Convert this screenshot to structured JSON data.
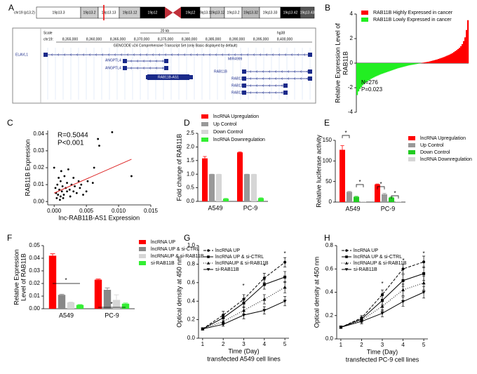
{
  "panel_labels": [
    "A",
    "B",
    "C",
    "D",
    "E",
    "F",
    "G",
    "H"
  ],
  "genome_browser": {
    "chromosome": "chr19 (p13.2)",
    "bands": [
      "19p13.3",
      "19p13.2",
      "19p13.13",
      "19p13.12",
      "19p12",
      "19q12",
      "19q13.11",
      "19q13.12",
      "19q13.2",
      "19q13.32",
      "19q13.33",
      "19q13.42",
      "19q13.43"
    ],
    "scale_label": "Scale",
    "scale_size": "20 kb",
    "assembly": "hg38",
    "chrom": "chr19:",
    "positions": [
      "8,355,000",
      "8,360,000",
      "8,365,000",
      "8,370,000",
      "8,375,000",
      "8,380,000",
      "8,385,000",
      "8,390,000",
      "8,395,000",
      "8,400,000"
    ],
    "track": "GENCODE v24 Comprehensive Transcript Set (only Basic displayed by default)",
    "genes": [
      "ELAVL1",
      "ANGPTL4",
      "ANGPTL4",
      "RAB11B-AS1",
      "MIR4999",
      "RAB11B",
      "RAB11B",
      "RAB11B",
      "RAB11B"
    ]
  },
  "chart_data": [
    {
      "type": "bar",
      "ylabel": [
        "Relative Expression Level of",
        "RAB11B"
      ],
      "ylim": [
        -4,
        4
      ],
      "yticks": [
        -4,
        -2,
        0,
        2,
        4
      ],
      "annotations": [
        "N=276",
        "P=0.023"
      ],
      "series": [
        {
          "name": "RAB11B Highly Expressed in cancer",
          "color": "#ff0000",
          "values": [
            0.02,
            0.04,
            0.06,
            0.08,
            0.1,
            0.12,
            0.15,
            0.18,
            0.21,
            0.24,
            0.27,
            0.3,
            0.34,
            0.38,
            0.42,
            0.46,
            0.5,
            0.55,
            0.6,
            0.65,
            0.7,
            0.76,
            0.82,
            0.9,
            0.98,
            1.06,
            1.15,
            1.25,
            1.38,
            1.55,
            1.8,
            2.1,
            2.7,
            3.5
          ]
        },
        {
          "name": "RAB11B Lowly Expressed in cancer",
          "color": "#22ee22",
          "values": [
            -2.6,
            -2.3,
            -2.1,
            -1.95,
            -1.8,
            -1.7,
            -1.6,
            -1.5,
            -1.42,
            -1.35,
            -1.28,
            -1.22,
            -1.16,
            -1.1,
            -1.05,
            -1.0,
            -0.95,
            -0.9,
            -0.86,
            -0.82,
            -0.78,
            -0.74,
            -0.7,
            -0.66,
            -0.62,
            -0.58,
            -0.54,
            -0.5,
            -0.46,
            -0.42,
            -0.39,
            -0.36,
            -0.33,
            -0.3,
            -0.27,
            -0.24,
            -0.21,
            -0.18,
            -0.16,
            -0.14,
            -0.12,
            -0.1,
            -0.08,
            -0.06,
            -0.04,
            -0.02
          ]
        }
      ]
    },
    {
      "type": "scatter",
      "xlabel": "lnc-RAB11B-AS1 Expression",
      "ylabel": [
        "RAB11B Expression"
      ],
      "color": "#000000",
      "xlim": [
        -0.001,
        0.015
      ],
      "xticks": [
        {
          "value": 0,
          "label": "0.000"
        },
        {
          "value": 0.005,
          "label": "0.005"
        },
        {
          "value": 0.01,
          "label": "0.010"
        },
        {
          "value": 0.015,
          "label": "0.015"
        }
      ],
      "ylim": [
        -0.002,
        0.042
      ],
      "yticks": [
        {
          "value": 0,
          "label": "0.00"
        },
        {
          "value": 0.01,
          "label": "0.01"
        },
        {
          "value": 0.02,
          "label": "0.02"
        },
        {
          "value": 0.03,
          "label": "0.03"
        },
        {
          "value": 0.04,
          "label": "0.04"
        }
      ],
      "annotations": [
        "R=0.5044",
        "P<0.001"
      ],
      "x": [
        0,
        0.0002,
        0.0003,
        0.0005,
        0.0006,
        0.0008,
        0.001,
        0.001,
        0.0012,
        0.0013,
        0.0015,
        0.0016,
        0.0018,
        0.002,
        0.002,
        0.0022,
        0.0024,
        0.0025,
        0.0027,
        0.003,
        0.003,
        0.0032,
        0.0035,
        0.0038,
        0.004,
        0.0042,
        0.0045,
        0.005,
        0.0052,
        0.006,
        0.0062,
        0.0068,
        0.007,
        0.009,
        0.012,
        0.0004,
        0.0007,
        0.0011,
        0.0009,
        0.0014
      ],
      "values": [
        0.02,
        0.008,
        0.005,
        0.01,
        0.004,
        0.007,
        0.003,
        0.012,
        0.006,
        0.009,
        0.004,
        0.015,
        0.008,
        0.006,
        0.011,
        0.019,
        0.007,
        0.003,
        0.01,
        0.006,
        0.014,
        0.009,
        0.005,
        0.012,
        0.008,
        0.01,
        0.004,
        0.006,
        0.012,
        0.011,
        0.02,
        0.037,
        0.033,
        0.041,
        0.015,
        0.002,
        0.014,
        0.018,
        0.001,
        0.002
      ],
      "fit": {
        "color": "#dd2222",
        "x": [
          0,
          0.012
        ],
        "values": [
          0.005,
          0.025
        ]
      }
    },
    {
      "type": "bar",
      "ylabel": [
        "Fold change of RAB11B"
      ],
      "categories": [
        "A549",
        "PC-9"
      ],
      "ylim": [
        0,
        2.5
      ],
      "yticks": [
        {
          "value": 0,
          "label": "0.0"
        },
        {
          "value": 0.5,
          "label": "0.5"
        },
        {
          "value": 1,
          "label": "1.0"
        },
        {
          "value": 1.5,
          "label": "1.5"
        },
        {
          "value": 2,
          "label": "2.0"
        },
        {
          "value": 2.5,
          "label": "2.5"
        }
      ],
      "series": [
        {
          "name": "lncRNA Upregulation",
          "color": "#ff0000",
          "values": [
            1.58,
            1.8
          ],
          "errors": [
            0.07,
            0.02
          ]
        },
        {
          "name": "Up Control",
          "color": "#999999",
          "values": [
            1,
            1
          ],
          "errors": [
            0,
            0
          ]
        },
        {
          "name": "Down Control",
          "color": "#d6d6d6",
          "values": [
            1,
            1
          ],
          "errors": [
            0,
            0
          ]
        },
        {
          "name": "lncRNA Downregulation",
          "color": "#33ee33",
          "values": [
            0.1,
            0.12
          ],
          "errors": [
            0.01,
            0.01
          ]
        }
      ]
    },
    {
      "type": "bar",
      "ylabel": [
        "Relative luciferase activity"
      ],
      "categories": [
        "A549",
        "PC-9"
      ],
      "ylim": [
        0,
        150
      ],
      "yticks": [
        0,
        50,
        100,
        150
      ],
      "annotations": [
        "*",
        "*",
        "*",
        "*"
      ],
      "series": [
        {
          "name": "lncRNA Upregulation",
          "color": "#ff0000",
          "values": [
            127,
            43
          ],
          "errors": [
            10,
            1
          ]
        },
        {
          "name": "Up Control",
          "color": "#999999",
          "values": [
            25,
            19
          ],
          "errors": [
            1,
            2
          ]
        },
        {
          "name": "Down Control",
          "color": "#22cc22",
          "values": [
            13,
            11
          ],
          "errors": [
            1,
            1
          ]
        },
        {
          "name": "lncRNA Downregulation",
          "color": "#d6d6d6",
          "values": [
            1,
            1
          ],
          "errors": [
            0,
            0
          ]
        }
      ]
    },
    {
      "type": "bar",
      "ylabel": [
        "Relative Expression",
        "Level of RAB11B"
      ],
      "categories": [
        "A549",
        "PC-9"
      ],
      "ylim": [
        0,
        0.05
      ],
      "yticks": [
        {
          "value": 0,
          "label": "0.00"
        },
        {
          "value": 0.01,
          "label": "0.01"
        },
        {
          "value": 0.02,
          "label": "0.02"
        },
        {
          "value": 0.03,
          "label": "0.03"
        },
        {
          "value": 0.04,
          "label": "0.04"
        },
        {
          "value": 0.05,
          "label": "0.05"
        }
      ],
      "annotations": [
        "*",
        "*"
      ],
      "series": [
        {
          "name": "lncRNA UP",
          "color": "#ff0000",
          "values": [
            0.042,
            0.023
          ],
          "errors": [
            0.0015,
            0.0005
          ]
        },
        {
          "name": "lncRNA UP & si-CTRL",
          "color": "#888888",
          "values": [
            0.011,
            0.015
          ],
          "errors": [
            0.0005,
            0.0015
          ]
        },
        {
          "name": "lncRNAUP & si-RAB11B",
          "color": "#d6d6d6",
          "values": [
            0.005,
            0.007
          ],
          "errors": [
            0.0003,
            0.004
          ]
        },
        {
          "name": "si-RAB11B",
          "color": "#33ee33",
          "values": [
            0.003,
            0.004
          ],
          "errors": [
            0.0003,
            0.0005
          ]
        }
      ]
    },
    {
      "type": "line",
      "xlabel": "Time (Day)",
      "subtitle": "transfected A549 cell lines",
      "ylabel": [
        "Optical density at 450 nm"
      ],
      "x": [
        1,
        2,
        3,
        4,
        5
      ],
      "xlim": [
        0.8,
        5.2
      ],
      "xticks": [
        1,
        2,
        3,
        4,
        5
      ],
      "ylim": [
        0,
        1
      ],
      "yticks": [
        {
          "value": 0,
          "label": "0.0"
        },
        {
          "value": 0.2,
          "label": "0.2"
        },
        {
          "value": 0.4,
          "label": "0.4"
        },
        {
          "value": 0.6,
          "label": "0.6"
        },
        {
          "value": 0.8,
          "label": "0.8"
        },
        {
          "value": 1,
          "label": "1.0"
        }
      ],
      "annotations": [
        "*",
        "*",
        "*"
      ],
      "series": [
        {
          "name": "lncRNA UP",
          "color": "#000000",
          "dash": "dashed",
          "marker": "circle",
          "values": [
            0.1,
            0.25,
            0.42,
            0.65,
            0.82
          ],
          "errors": [
            0.01,
            0.04,
            0.05,
            0.05,
            0.05
          ]
        },
        {
          "name": "lncRNA UP & si-CTRL",
          "color": "#000000",
          "dash": "solid",
          "marker": "square",
          "values": [
            0.1,
            0.22,
            0.38,
            0.58,
            0.66
          ],
          "errors": [
            0.01,
            0.03,
            0.05,
            0.05,
            0.06
          ]
        },
        {
          "name": "lncRNAUP & si-RAB11B",
          "color": "#000000",
          "dash": "dotted",
          "marker": "triangle",
          "values": [
            0.1,
            0.18,
            0.3,
            0.42,
            0.55
          ],
          "errors": [
            0.01,
            0.03,
            0.04,
            0.05,
            0.06
          ]
        },
        {
          "name": "si-RAB11B",
          "color": "#000000",
          "dash": "solid",
          "marker": "triangle-down",
          "values": [
            0.1,
            0.15,
            0.25,
            0.3,
            0.4
          ],
          "errors": [
            0.01,
            0.02,
            0.04,
            0.04,
            0.05
          ]
        }
      ]
    },
    {
      "type": "line",
      "xlabel": "Time (Day)",
      "subtitle": "transfected PC-9 cell lines",
      "ylabel": [
        "Optical density at 450 nm"
      ],
      "x": [
        1,
        2,
        3,
        4,
        5
      ],
      "xlim": [
        0.8,
        5.2
      ],
      "xticks": [
        1,
        2,
        3,
        4,
        5
      ],
      "ylim": [
        0,
        0.8
      ],
      "yticks": [
        {
          "value": 0,
          "label": "0.0"
        },
        {
          "value": 0.2,
          "label": "0.2"
        },
        {
          "value": 0.4,
          "label": "0.4"
        },
        {
          "value": 0.6,
          "label": "0.6"
        },
        {
          "value": 0.8,
          "label": "0.8"
        }
      ],
      "annotations": [
        "*",
        "*",
        "*"
      ],
      "series": [
        {
          "name": "lncRNA UP",
          "color": "#000000",
          "dash": "dashed",
          "marker": "circle",
          "values": [
            0.1,
            0.18,
            0.38,
            0.6,
            0.66
          ],
          "errors": [
            0.01,
            0.02,
            0.04,
            0.04,
            0.05
          ]
        },
        {
          "name": "lncRNA UP & si-CTRL",
          "color": "#000000",
          "dash": "solid",
          "marker": "square",
          "values": [
            0.1,
            0.17,
            0.33,
            0.5,
            0.56
          ],
          "errors": [
            0.01,
            0.02,
            0.04,
            0.05,
            0.06
          ]
        },
        {
          "name": "lncRNAUP & si-RAB11B",
          "color": "#000000",
          "dash": "dotted",
          "marker": "triangle",
          "values": [
            0.1,
            0.16,
            0.28,
            0.42,
            0.48
          ],
          "errors": [
            0.01,
            0.02,
            0.04,
            0.05,
            0.06
          ]
        },
        {
          "name": "si-RAB11B",
          "color": "#000000",
          "dash": "solid",
          "marker": "triangle-down",
          "values": [
            0.1,
            0.15,
            0.22,
            0.32,
            0.4
          ],
          "errors": [
            0.01,
            0.02,
            0.03,
            0.04,
            0.05
          ]
        }
      ]
    }
  ]
}
